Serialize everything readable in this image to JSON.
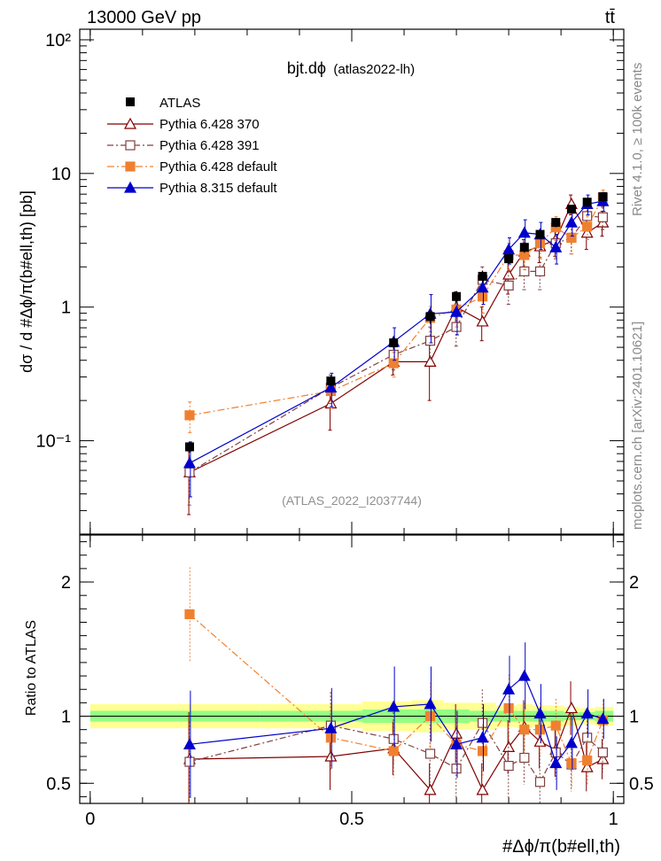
{
  "header": {
    "energy_label": "13000 GeV pp",
    "process_label": "tt̄"
  },
  "side_labels": {
    "rivet": "Rivet 4.1.0, ≥ 100k events",
    "mcplots": "mcplots.cern.ch [arXiv:2401.10621]"
  },
  "chart_data": {
    "type": "line",
    "title": "bjt.dϕ",
    "subtitle": "(atlas2022-lh)",
    "analysis_id": "(ATLAS_2022_I2037744)",
    "xlabel": "#Δϕ/π(b#ell,th)",
    "ylabel": "dσ / d #Δϕ/π(b#ell,th) [pb]",
    "ratio_ylabel": "Ratio to ATLAS",
    "xlim": [
      -0.02,
      1.02
    ],
    "ylim": [
      0.02,
      120
    ],
    "yscale": "log",
    "ratio_ylim": [
      0.35,
      2.35
    ],
    "x_ticks": [
      "0",
      "0.5",
      "1"
    ],
    "y_ticks": [
      "10⁻¹",
      "1",
      "10",
      "10²"
    ],
    "ratio_ticks": [
      "0.5",
      "1",
      "2"
    ],
    "legend_position": "top-left",
    "x": [
      0.19,
      0.46,
      0.58,
      0.65,
      0.7,
      0.75,
      0.8,
      0.83,
      0.86,
      0.89,
      0.92,
      0.95,
      0.98
    ],
    "data": {
      "name": "ATLAS",
      "values": [
        0.09,
        0.28,
        0.54,
        0.85,
        1.2,
        1.7,
        2.3,
        2.8,
        3.5,
        4.3,
        5.4,
        6.1,
        6.7
      ]
    },
    "band_outer": [
      0.09,
      0.09,
      0.11,
      0.12,
      0.1,
      0.1,
      0.08,
      0.09,
      0.08,
      0.08,
      0.07,
      0.06,
      0.07
    ],
    "band_inner": [
      0.04,
      0.04,
      0.05,
      0.05,
      0.05,
      0.04,
      0.04,
      0.04,
      0.04,
      0.04,
      0.03,
      0.03,
      0.04
    ],
    "series": [
      {
        "name": "Pythia 6.428 370",
        "color": "#800000",
        "marker": "open-triangle",
        "dash": "",
        "values": [
          0.058,
          0.19,
          0.39,
          0.39,
          1.0,
          0.78,
          1.75,
          2.6,
          2.85,
          3.2,
          5.9,
          3.6,
          4.3
        ],
        "errors": [
          0.03,
          0.07,
          0.08,
          0.19,
          0.3,
          0.22,
          0.5,
          0.6,
          0.7,
          0.8,
          1.0,
          0.9,
          0.9
        ],
        "ratio": [
          0.68,
          0.7,
          0.76,
          0.45,
          0.87,
          0.45,
          0.77,
          0.92,
          0.81,
          0.75,
          1.06,
          0.62,
          0.68
        ],
        "ratio_errors": [
          0.35,
          0.25,
          0.2,
          0.2,
          0.22,
          0.2,
          0.2,
          0.2,
          0.2,
          0.2,
          0.2,
          0.18,
          0.15
        ]
      },
      {
        "name": "Pythia 6.428 391",
        "color": "#804040",
        "marker": "open-square",
        "dash": "7,3,2,3",
        "values": [
          0.058,
          0.25,
          0.44,
          0.56,
          0.71,
          1.6,
          1.45,
          1.85,
          1.85,
          3.0,
          3.3,
          4.8,
          4.7
        ],
        "errors": [
          0.025,
          0.06,
          0.1,
          0.15,
          0.2,
          0.4,
          0.4,
          0.5,
          0.5,
          0.7,
          0.8,
          0.9,
          0.9
        ],
        "ratio": [
          0.66,
          0.93,
          0.83,
          0.72,
          0.61,
          0.95,
          0.63,
          0.69,
          0.51,
          0.73,
          0.64,
          0.84,
          0.73
        ],
        "ratio_errors": [
          0.3,
          0.25,
          0.2,
          0.22,
          0.22,
          0.25,
          0.25,
          0.2,
          0.2,
          0.2,
          0.2,
          0.18,
          0.15
        ]
      },
      {
        "name": "Pythia 6.428 default",
        "color": "#f08030",
        "marker": "filled-square",
        "dash": "8,3,2,3",
        "values": [
          0.155,
          0.235,
          0.38,
          0.83,
          0.96,
          1.2,
          2.45,
          2.45,
          3.0,
          3.95,
          3.3,
          4.0,
          6.6
        ],
        "errors": [
          0.04,
          0.06,
          0.08,
          0.18,
          0.25,
          0.3,
          0.55,
          0.55,
          0.7,
          0.8,
          0.8,
          0.8,
          0.9
        ],
        "ratio": [
          1.76,
          0.84,
          0.74,
          1.0,
          0.79,
          0.74,
          1.06,
          0.9,
          0.9,
          0.93,
          0.65,
          0.67,
          0.97
        ],
        "ratio_errors": [
          0.35,
          0.25,
          0.2,
          0.25,
          0.22,
          0.2,
          0.25,
          0.2,
          0.2,
          0.2,
          0.18,
          0.18,
          0.15
        ]
      },
      {
        "name": "Pythia 8.315 default",
        "color": "#0000cc",
        "marker": "filled-triangle",
        "dash": "",
        "values": [
          0.068,
          0.25,
          0.55,
          0.89,
          0.92,
          1.4,
          2.7,
          3.6,
          3.5,
          2.8,
          4.3,
          5.9,
          6.2
        ],
        "errors": [
          0.03,
          0.07,
          0.15,
          0.35,
          0.3,
          0.35,
          0.6,
          0.9,
          0.8,
          0.7,
          0.9,
          1.0,
          1.0
        ],
        "ratio": [
          0.79,
          0.91,
          1.07,
          1.09,
          0.79,
          0.84,
          1.2,
          1.3,
          1.02,
          0.65,
          0.8,
          1.02,
          0.98
        ],
        "ratio_errors": [
          0.4,
          0.3,
          0.3,
          0.28,
          0.25,
          0.25,
          0.25,
          0.25,
          0.22,
          0.2,
          0.2,
          0.18,
          0.15
        ]
      }
    ]
  }
}
